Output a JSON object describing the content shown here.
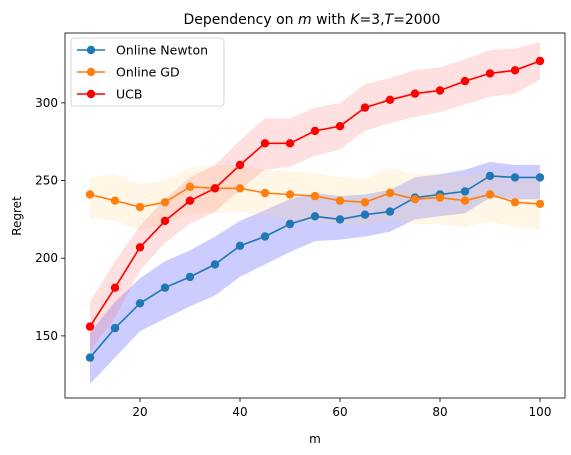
{
  "chart_data": {
    "type": "line",
    "title_parts": [
      "Dependency on ",
      "m",
      " with ",
      "K",
      "=3,",
      "T",
      "=2000"
    ],
    "xlabel": "m",
    "ylabel": "Regret",
    "xlim": [
      5,
      105
    ],
    "ylim": [
      110,
      345
    ],
    "xticks": [
      20,
      40,
      60,
      80,
      100
    ],
    "yticks": [
      150,
      200,
      250,
      300
    ],
    "x": [
      10,
      15,
      20,
      25,
      30,
      35,
      40,
      45,
      50,
      55,
      60,
      65,
      70,
      75,
      80,
      85,
      90,
      95,
      100
    ],
    "legend_position": "upper-left",
    "series": [
      {
        "name": "Online Newton",
        "color": "#1f77b4",
        "band_color": "#0000ff",
        "values": [
          136,
          155,
          171,
          181,
          188,
          196,
          208,
          214,
          222,
          227,
          225,
          228,
          230,
          239,
          241,
          243,
          253,
          252,
          252
        ],
        "lower": [
          119,
          136,
          153,
          161,
          169,
          176,
          188,
          196,
          204,
          211,
          212,
          214,
          217,
          225,
          227,
          229,
          239,
          238,
          238
        ],
        "upper": [
          152,
          172,
          187,
          198,
          205,
          214,
          224,
          231,
          238,
          242,
          240,
          241,
          244,
          252,
          254,
          257,
          262,
          260,
          260
        ]
      },
      {
        "name": "Online GD",
        "color": "#ff7f0e",
        "band_color": "#ffd480",
        "values": [
          241,
          237,
          233,
          236,
          246,
          245,
          245,
          242,
          241,
          240,
          237,
          236,
          242,
          238,
          239,
          237,
          241,
          236,
          235
        ],
        "lower": [
          226,
          224,
          218,
          222,
          229,
          229,
          230,
          227,
          225,
          224,
          222,
          221,
          225,
          222,
          222,
          220,
          224,
          220,
          218
        ],
        "upper": [
          252,
          254,
          248,
          250,
          258,
          260,
          260,
          257,
          256,
          255,
          252,
          251,
          258,
          254,
          255,
          253,
          257,
          252,
          252
        ]
      },
      {
        "name": "UCB",
        "color": "#ff0000",
        "band_color": "#ff6666",
        "values": [
          156,
          181,
          207,
          224,
          237,
          245,
          260,
          274,
          274,
          282,
          285,
          297,
          302,
          306,
          308,
          314,
          319,
          321,
          327
        ],
        "lower": [
          140,
          162,
          192,
          210,
          222,
          230,
          244,
          257,
          259,
          266,
          270,
          282,
          287,
          291,
          294,
          299,
          304,
          306,
          315
        ],
        "upper": [
          172,
          198,
          221,
          238,
          252,
          260,
          276,
          290,
          290,
          297,
          300,
          312,
          316,
          321,
          323,
          328,
          334,
          335,
          339
        ]
      }
    ]
  }
}
